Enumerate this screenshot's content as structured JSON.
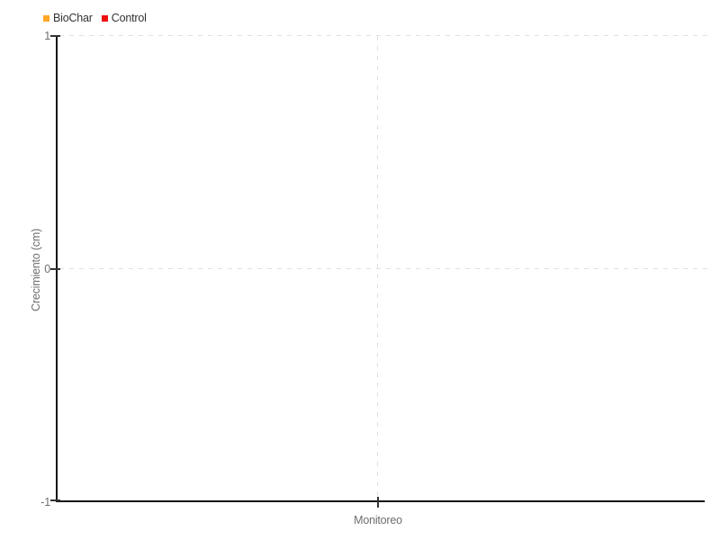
{
  "legend": {
    "items": [
      {
        "label": "BioChar",
        "color": "#FFA726"
      },
      {
        "label": "Control",
        "color": "#EE1111"
      }
    ]
  },
  "axes": {
    "y": {
      "title": "Crecimiento (cm)",
      "ticks": [
        "1",
        "0",
        "-1"
      ]
    },
    "x": {
      "title": "Monitoreo"
    }
  },
  "chart_data": {
    "type": "line",
    "title": "",
    "xlabel": "Monitoreo",
    "ylabel": "Crecimiento (cm)",
    "ylim": [
      -1,
      1
    ],
    "yticks": [
      1,
      0,
      -1
    ],
    "x": [],
    "series": [
      {
        "name": "BioChar",
        "color": "#FFA726",
        "values": []
      },
      {
        "name": "Control",
        "color": "#EE1111",
        "values": []
      }
    ],
    "grid": "dashed",
    "legend_position": "top-left",
    "axis_color": "#111111",
    "grid_color": "#e0e0e0",
    "label_color": "#6e6e6e"
  }
}
